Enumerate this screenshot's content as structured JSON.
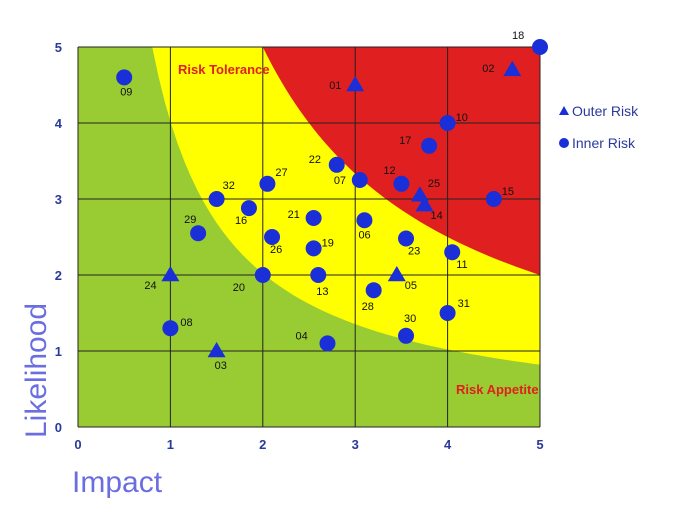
{
  "chart_data": {
    "type": "scatter",
    "xlabel": "Impact",
    "ylabel": "Likelihood",
    "xlim": [
      0,
      5
    ],
    "ylim": [
      0,
      5
    ],
    "x_ticks": [
      "0",
      "1",
      "2",
      "3",
      "4",
      "5"
    ],
    "y_ticks": [
      "0",
      "1",
      "2",
      "3",
      "4",
      "5"
    ],
    "grid": true,
    "zones": [
      {
        "name": "Risk Tolerance",
        "color": "#ffff00",
        "label_color": "#e0201e"
      },
      {
        "name": "Risk Appetite",
        "color": "#99cc33",
        "label_color": "#e0201e"
      },
      {
        "name": "",
        "color": "#e02020"
      }
    ],
    "legend": {
      "position": "right",
      "entries": [
        {
          "name": "Outer Risk",
          "marker": "triangle"
        },
        {
          "name": "Inner Risk",
          "marker": "circle"
        }
      ]
    },
    "marker_color": "#1a2fd8",
    "series": [
      {
        "name": "Outer Risk",
        "marker": "triangle",
        "points": [
          {
            "label": "01",
            "x": 3.0,
            "y": 4.5
          },
          {
            "label": "02",
            "x": 4.7,
            "y": 4.7
          },
          {
            "label": "25",
            "x": 3.7,
            "y": 3.05
          },
          {
            "label": "14",
            "x": 3.75,
            "y": 2.92
          },
          {
            "label": "05",
            "x": 3.45,
            "y": 2.0
          },
          {
            "label": "24",
            "x": 1.0,
            "y": 2.0
          },
          {
            "label": "03",
            "x": 1.5,
            "y": 1.0
          }
        ]
      },
      {
        "name": "Inner Risk",
        "marker": "circle",
        "points": [
          {
            "label": "09",
            "x": 0.5,
            "y": 4.6
          },
          {
            "label": "18",
            "x": 5.0,
            "y": 5.0
          },
          {
            "label": "10",
            "x": 4.0,
            "y": 4.0
          },
          {
            "label": "17",
            "x": 3.8,
            "y": 3.7
          },
          {
            "label": "22",
            "x": 2.8,
            "y": 3.45
          },
          {
            "label": "07",
            "x": 3.05,
            "y": 3.25
          },
          {
            "label": "12",
            "x": 3.5,
            "y": 3.2
          },
          {
            "label": "15",
            "x": 4.5,
            "y": 3.0
          },
          {
            "label": "27",
            "x": 2.05,
            "y": 3.2
          },
          {
            "label": "32",
            "x": 1.5,
            "y": 3.0
          },
          {
            "label": "16",
            "x": 1.85,
            "y": 2.88
          },
          {
            "label": "29",
            "x": 1.3,
            "y": 2.55
          },
          {
            "label": "21",
            "x": 2.55,
            "y": 2.75
          },
          {
            "label": "06",
            "x": 3.1,
            "y": 2.72
          },
          {
            "label": "26",
            "x": 2.1,
            "y": 2.5
          },
          {
            "label": "19",
            "x": 2.55,
            "y": 2.35
          },
          {
            "label": "23",
            "x": 3.55,
            "y": 2.48
          },
          {
            "label": "11",
            "x": 4.05,
            "y": 2.3
          },
          {
            "label": "20",
            "x": 2.0,
            "y": 2.0
          },
          {
            "label": "13",
            "x": 2.6,
            "y": 2.0
          },
          {
            "label": "28",
            "x": 3.2,
            "y": 1.8
          },
          {
            "label": "31",
            "x": 4.0,
            "y": 1.5
          },
          {
            "label": "08",
            "x": 1.0,
            "y": 1.3
          },
          {
            "label": "30",
            "x": 3.55,
            "y": 1.2
          },
          {
            "label": "04",
            "x": 2.7,
            "y": 1.1
          }
        ]
      }
    ]
  }
}
